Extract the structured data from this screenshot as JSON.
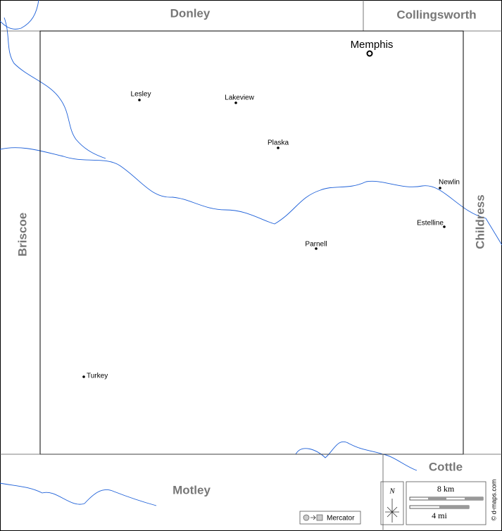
{
  "counties": {
    "north": "Donley",
    "northeast": "Collingsworth",
    "west": "Briscoe",
    "east": "Childress",
    "south": "Motley",
    "southeast": "Cottle"
  },
  "capital": "Memphis",
  "towns": [
    "Lesley",
    "Lakeview",
    "Plaska",
    "Newlin",
    "Estelline",
    "Parnell",
    "Turkey"
  ],
  "legend": {
    "north": "N",
    "scale_km": "8 km",
    "scale_mi": "4 mi",
    "projection": "Mercator",
    "credit": "© d-maps.com"
  }
}
